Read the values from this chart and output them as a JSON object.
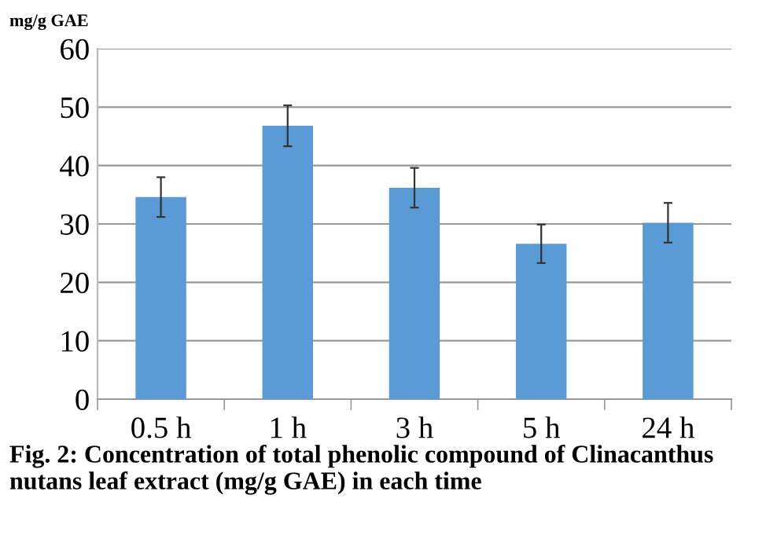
{
  "chart_data": {
    "type": "bar",
    "ylabel": "mg/g GAE",
    "annotations": [
      "Fig. 2: Concentration of total phenolic compound of Clinacanthus nutans leaf extract (mg/g GAE) in each time"
    ],
    "categories": [
      "0.5 h",
      "1 h",
      "3 h",
      "5 h",
      "24 h"
    ],
    "values": [
      34.6,
      46.8,
      36.2,
      26.6,
      30.2
    ],
    "errors": [
      3.4,
      3.5,
      3.4,
      3.3,
      3.4
    ],
    "color": "#5b9bd5",
    "ylim": [
      0,
      60
    ],
    "yticks": [
      0,
      10,
      20,
      30,
      40,
      50,
      60
    ],
    "grid": "y"
  }
}
